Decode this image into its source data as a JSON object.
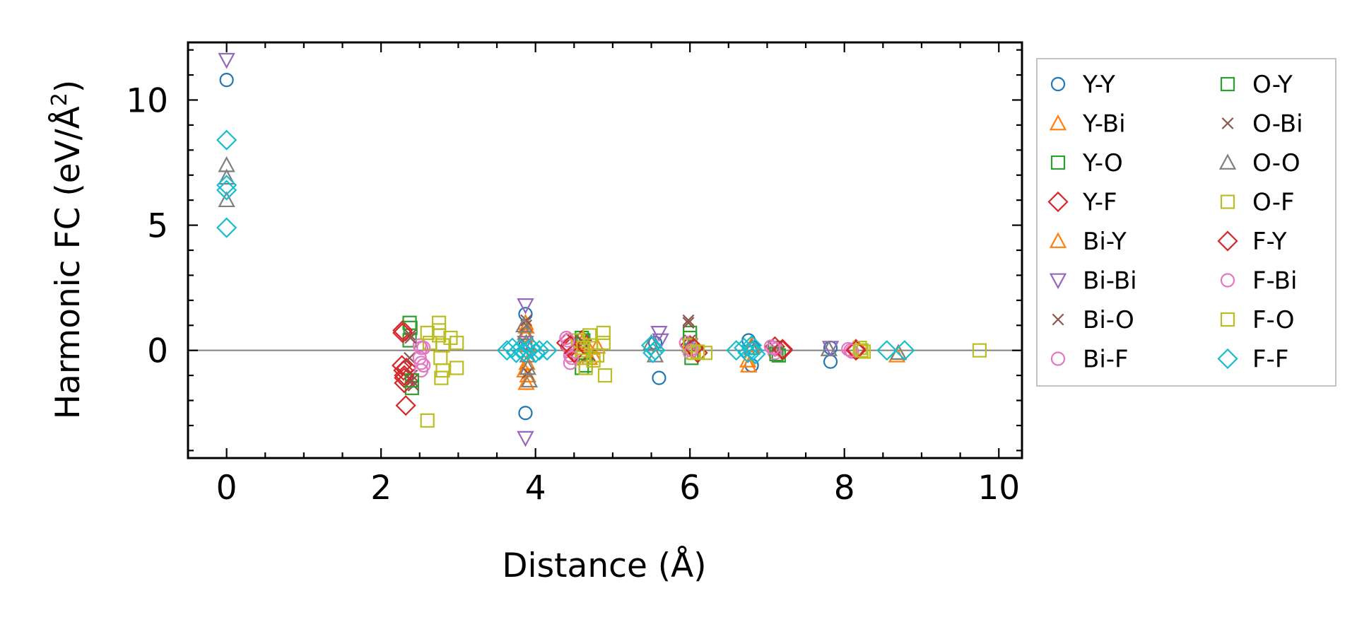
{
  "chart_data": {
    "type": "scatter",
    "title": "",
    "xlabel": "Distance (Å)",
    "ylabel_main": "Harmonic FC (eV/Å",
    "ylabel_sup": "2",
    "ylabel_end": ")",
    "xlim": [
      -0.5,
      10.3
    ],
    "ylim": [
      -4.3,
      12.3
    ],
    "xticks": [
      0,
      2,
      4,
      6,
      8,
      10
    ],
    "yticks": [
      0,
      5,
      10
    ],
    "xtick_labels": [
      "0",
      "2",
      "4",
      "6",
      "8",
      "10"
    ],
    "ytick_labels": [
      "0",
      "5",
      "10"
    ],
    "zero_line": 0,
    "legend_position": "right-outside",
    "series": [
      {
        "name": "Y-Y",
        "marker": "circle",
        "color": "#1f77b4",
        "x": [
          0,
          3.87,
          3.87,
          3.87,
          5.55,
          5.6,
          6.76,
          6.8,
          6.82,
          7.82,
          7.82
        ],
        "y": [
          10.8,
          1.45,
          -2.5,
          0.2,
          0.3,
          -1.1,
          0.4,
          -0.6,
          0.1,
          0.1,
          -0.45
        ]
      },
      {
        "name": "Y-Bi",
        "marker": "triangle-up",
        "color": "#ff7f0e",
        "x": [
          3.87,
          3.87,
          3.89,
          3.9,
          3.88,
          4.6,
          4.7,
          4.8,
          6.76,
          6.8,
          8.68
        ],
        "y": [
          1.1,
          0.6,
          -0.5,
          -1.0,
          -1.3,
          0.3,
          -0.3,
          0.15,
          -0.6,
          0.2,
          -0.2
        ]
      },
      {
        "name": "Y-O",
        "marker": "square",
        "color": "#2ca02c",
        "x": [
          2.37,
          2.37,
          2.4,
          4.6,
          4.6,
          6.0,
          6.02,
          7.1,
          7.15
        ],
        "y": [
          1.1,
          0.4,
          -1.5,
          0.5,
          -0.7,
          0.7,
          -0.3,
          0.1,
          -0.2
        ]
      },
      {
        "name": "Y-F",
        "marker": "diamond",
        "color": "#d62728",
        "x": [
          2.28,
          2.27,
          2.29,
          2.3,
          2.3,
          2.33,
          2.32,
          4.4,
          4.45,
          4.55,
          4.6,
          6.0,
          6.1,
          7.1,
          7.2,
          8.15
        ],
        "y": [
          0.8,
          -0.6,
          -0.8,
          -1.1,
          -1.3,
          -0.7,
          -2.2,
          0.3,
          0.1,
          -0.2,
          0.4,
          0.2,
          -0.1,
          0.15,
          0.0,
          0.05
        ]
      },
      {
        "name": "Bi-Y",
        "marker": "triangle-up",
        "color": "#ff7f0e",
        "x": [
          3.88,
          3.9,
          3.86,
          4.65,
          4.75,
          6.75,
          8.7
        ],
        "y": [
          0.95,
          0.2,
          -0.8,
          0.3,
          -0.2,
          -0.4,
          -0.1
        ]
      },
      {
        "name": "Bi-Bi",
        "marker": "triangle-down",
        "color": "#9467bd",
        "x": [
          0,
          3.87,
          3.87,
          3.87,
          5.6,
          5.62,
          6.0,
          7.82
        ],
        "y": [
          11.6,
          1.8,
          -3.5,
          0.3,
          0.7,
          0.4,
          0.2,
          0.1
        ]
      },
      {
        "name": "Bi-O",
        "marker": "x",
        "color": "#8c564b",
        "x": [
          2.38,
          2.37,
          2.4,
          2.42,
          3.88,
          3.9,
          4.6,
          4.7,
          5.98,
          6.0,
          7.1
        ],
        "y": [
          0.6,
          -0.3,
          -1.0,
          -1.4,
          1.2,
          -0.9,
          0.4,
          -0.2,
          1.2,
          0.4,
          0.1
        ]
      },
      {
        "name": "Bi-F",
        "marker": "circle",
        "color": "#e377c2",
        "x": [
          2.5,
          2.5,
          2.52,
          2.52,
          2.55,
          4.4,
          4.42,
          4.45,
          4.45,
          5.95,
          6.0,
          6.05,
          7.05,
          7.1,
          7.12,
          8.05,
          8.1
        ],
        "y": [
          0.2,
          -0.3,
          -0.5,
          -0.8,
          0.1,
          0.5,
          0.2,
          -0.2,
          -0.5,
          0.3,
          -0.1,
          0.1,
          0.15,
          -0.1,
          0.05,
          0.05,
          -0.05
        ]
      },
      {
        "name": "O-Y",
        "marker": "square",
        "color": "#2ca02c",
        "x": [
          2.38,
          2.4,
          4.62,
          4.65,
          6.0,
          7.12
        ],
        "y": [
          0.9,
          -1.2,
          0.4,
          -0.6,
          0.5,
          -0.15
        ]
      },
      {
        "name": "O-Bi",
        "marker": "x",
        "color": "#8c564b",
        "x": [
          2.38,
          2.4,
          3.88,
          4.62,
          5.98,
          6.02
        ],
        "y": [
          0.5,
          -1.2,
          1.0,
          0.3,
          1.1,
          0.3
        ]
      },
      {
        "name": "O-O",
        "marker": "triangle-up",
        "color": "#7f7f7f",
        "x": [
          0,
          0,
          0,
          3.85,
          3.87,
          3.88,
          3.9,
          3.9,
          3.92,
          5.5,
          5.55,
          6.0,
          6.8,
          7.8,
          8.7
        ],
        "y": [
          7.4,
          6.9,
          6.0,
          1.0,
          0.7,
          0.3,
          -0.2,
          -0.7,
          -1.2,
          0.3,
          -0.2,
          0.2,
          0.1,
          0.05,
          -0.1
        ]
      },
      {
        "name": "O-F",
        "marker": "square",
        "color": "#bcbd22",
        "x": [
          2.6,
          2.6,
          2.63,
          2.75,
          2.75,
          2.77,
          2.78,
          2.8,
          2.9,
          2.98,
          2.98,
          4.55,
          4.6,
          4.62,
          4.65,
          4.7,
          4.72,
          4.8,
          4.88,
          4.88,
          4.9,
          6.0,
          6.05,
          6.2,
          8.2,
          8.25
        ],
        "y": [
          0.7,
          -2.8,
          0.3,
          1.1,
          0.6,
          -0.3,
          -1.1,
          0.2,
          0.5,
          0.3,
          -0.7,
          0.4,
          0.0,
          -0.3,
          -0.7,
          0.6,
          0.2,
          -0.2,
          0.7,
          0.3,
          -1.0,
          0.2,
          -0.1,
          -0.1,
          0.1,
          -0.05
        ]
      },
      {
        "name": "F-Y",
        "marker": "diamond",
        "color": "#d62728",
        "x": [
          2.28,
          2.3,
          4.45,
          4.5,
          6.05,
          7.2,
          8.15
        ],
        "y": [
          0.7,
          -1.0,
          0.2,
          -0.1,
          0.1,
          0.05,
          0.0
        ]
      },
      {
        "name": "F-Bi",
        "marker": "circle",
        "color": "#e377c2",
        "x": [
          2.52,
          2.55,
          4.42,
          4.47,
          6.02,
          7.08,
          8.08
        ],
        "y": [
          0.1,
          -0.6,
          0.4,
          -0.3,
          0.0,
          0.1,
          0.0
        ]
      },
      {
        "name": "F-O",
        "marker": "square",
        "color": "#bcbd22",
        "x": [
          2.75,
          2.8,
          4.62,
          4.75,
          6.1,
          8.22,
          9.75
        ],
        "y": [
          0.8,
          -0.8,
          0.1,
          -0.4,
          -0.05,
          0.0,
          0.0
        ]
      },
      {
        "name": "F-F",
        "marker": "diamond",
        "color": "#17becf",
        "x": [
          0,
          0,
          0,
          0,
          3.63,
          3.7,
          3.75,
          3.8,
          3.85,
          3.9,
          3.95,
          4.0,
          4.05,
          4.15,
          5.5,
          5.52,
          5.55,
          6.6,
          6.7,
          6.75,
          6.8,
          6.82,
          6.85,
          8.55,
          8.78
        ],
        "y": [
          8.4,
          6.6,
          6.4,
          4.9,
          0.0,
          0.1,
          -0.1,
          0.05,
          -0.05,
          0.0,
          0.1,
          -0.1,
          0.0,
          0.0,
          0.2,
          -0.1,
          0.0,
          0.0,
          0.1,
          -0.1,
          0.2,
          0.0,
          -0.15,
          0.0,
          0.0
        ]
      }
    ]
  }
}
